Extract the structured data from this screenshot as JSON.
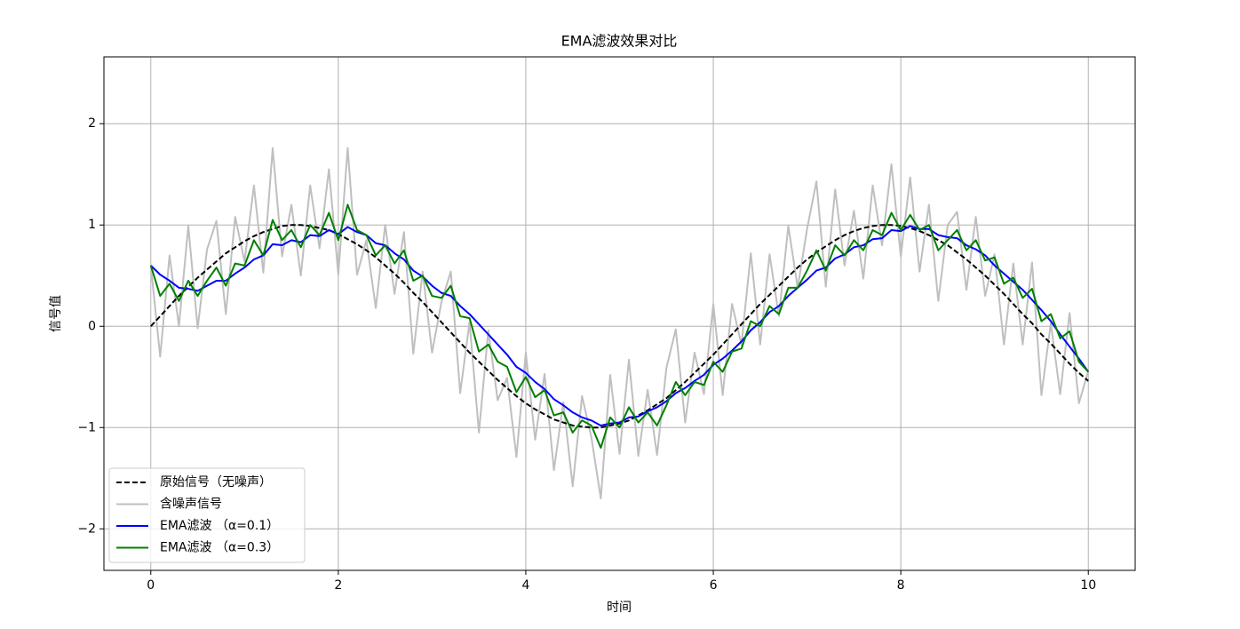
{
  "chart_data": {
    "type": "line",
    "title": "EMA滤波效果对比",
    "x_label": "时间",
    "y_label": "信号值",
    "x": [
      0,
      0.1,
      0.2,
      0.3,
      0.4,
      0.5,
      0.6,
      0.7,
      0.8,
      0.9,
      1,
      1.1,
      1.2,
      1.3,
      1.4,
      1.5,
      1.6,
      1.7,
      1.8,
      1.9,
      2,
      2.1,
      2.2,
      2.3,
      2.4,
      2.5,
      2.6,
      2.7,
      2.8,
      2.9,
      3,
      3.1,
      3.2,
      3.3,
      3.4,
      3.5,
      3.6,
      3.7,
      3.8,
      3.9,
      4,
      4.1,
      4.2,
      4.3,
      4.4,
      4.5,
      4.6,
      4.7,
      4.8,
      4.9,
      5,
      5.1,
      5.2,
      5.3,
      5.4,
      5.5,
      5.6,
      5.7,
      5.8,
      5.9,
      6,
      6.1,
      6.2,
      6.3,
      6.4,
      6.5,
      6.6,
      6.7,
      6.8,
      6.9,
      7,
      7.1,
      7.2,
      7.3,
      7.4,
      7.5,
      7.6,
      7.7,
      7.8,
      7.9,
      8,
      8.1,
      8.2,
      8.3,
      8.4,
      8.5,
      8.6,
      8.7,
      8.8,
      8.9,
      9,
      9.1,
      9.2,
      9.3,
      9.4,
      9.5,
      9.6,
      9.7,
      9.8,
      9.9,
      10
    ],
    "series": [
      {
        "name": "含噪声信号",
        "color": "#bfbfbf",
        "linestyle": "solid",
        "values": [
          0.6,
          -0.3,
          0.7,
          0.0,
          0.99,
          -0.02,
          0.76,
          1.04,
          0.12,
          1.08,
          0.64,
          1.39,
          0.53,
          1.76,
          0.69,
          1.2,
          0.5,
          1.39,
          0.77,
          1.55,
          0.51,
          1.76,
          0.51,
          0.85,
          0.18,
          1.0,
          0.32,
          0.93,
          -0.27,
          0.54,
          -0.26,
          0.24,
          0.54,
          -0.66,
          0.04,
          -1.05,
          -0.04,
          -0.73,
          -0.51,
          -1.29,
          -0.26,
          -1.12,
          -0.47,
          -1.42,
          -0.75,
          -1.58,
          -0.69,
          -1.1,
          -1.7,
          -0.48,
          -1.26,
          -0.33,
          -1.28,
          -0.63,
          -1.27,
          -0.41,
          -0.03,
          -0.95,
          -0.26,
          -0.67,
          0.22,
          -0.68,
          0.22,
          -0.18,
          0.72,
          -0.18,
          0.71,
          0.1,
          0.99,
          0.38,
          0.96,
          1.43,
          0.39,
          1.35,
          0.6,
          1.14,
          0.47,
          1.39,
          0.8,
          1.6,
          0.69,
          1.47,
          0.54,
          1.2,
          0.25,
          1.0,
          1.13,
          0.36,
          1.08,
          0.3,
          0.71,
          -0.18,
          0.62,
          -0.18,
          0.63,
          -0.68,
          0.03,
          -0.67,
          0.13,
          -0.76,
          -0.44
        ]
      },
      {
        "name": "原始信号（无噪声）",
        "color": "#000000",
        "linestyle": "dashed",
        "values": [
          0,
          0.1,
          0.2,
          0.3,
          0.39,
          0.48,
          0.56,
          0.64,
          0.72,
          0.78,
          0.84,
          0.89,
          0.93,
          0.96,
          0.99,
          1.0,
          1.0,
          0.99,
          0.97,
          0.95,
          0.91,
          0.86,
          0.81,
          0.75,
          0.68,
          0.6,
          0.52,
          0.43,
          0.33,
          0.24,
          0.14,
          0.04,
          -0.06,
          -0.16,
          -0.26,
          -0.35,
          -0.44,
          -0.53,
          -0.61,
          -0.69,
          -0.76,
          -0.82,
          -0.87,
          -0.92,
          -0.95,
          -0.98,
          -0.99,
          -1.0,
          -1.0,
          -0.98,
          -0.96,
          -0.93,
          -0.88,
          -0.83,
          -0.77,
          -0.71,
          -0.63,
          -0.55,
          -0.46,
          -0.37,
          -0.28,
          -0.18,
          -0.08,
          0.02,
          0.12,
          0.22,
          0.31,
          0.4,
          0.49,
          0.58,
          0.66,
          0.73,
          0.79,
          0.85,
          0.9,
          0.94,
          0.97,
          0.99,
          1.0,
          1.0,
          0.99,
          0.97,
          0.94,
          0.9,
          0.85,
          0.8,
          0.73,
          0.66,
          0.58,
          0.5,
          0.41,
          0.32,
          0.22,
          0.12,
          0.03,
          -0.08,
          -0.17,
          -0.27,
          -0.37,
          -0.46,
          -0.54
        ]
      },
      {
        "name": "EMA滤波 （α=0.1）",
        "color": "#0000ff",
        "linestyle": "solid",
        "values": [
          0.6,
          0.51,
          0.45,
          0.38,
          0.37,
          0.35,
          0.4,
          0.45,
          0.45,
          0.52,
          0.58,
          0.66,
          0.7,
          0.81,
          0.8,
          0.85,
          0.83,
          0.9,
          0.89,
          0.95,
          0.91,
          0.98,
          0.93,
          0.9,
          0.82,
          0.8,
          0.72,
          0.66,
          0.55,
          0.49,
          0.4,
          0.33,
          0.3,
          0.2,
          0.12,
          0.02,
          -0.08,
          -0.18,
          -0.28,
          -0.4,
          -0.46,
          -0.55,
          -0.62,
          -0.72,
          -0.78,
          -0.85,
          -0.9,
          -0.93,
          -0.98,
          -0.96,
          -0.95,
          -0.9,
          -0.89,
          -0.84,
          -0.8,
          -0.74,
          -0.66,
          -0.61,
          -0.54,
          -0.48,
          -0.38,
          -0.32,
          -0.24,
          -0.15,
          -0.04,
          0.04,
          0.14,
          0.2,
          0.3,
          0.38,
          0.46,
          0.55,
          0.58,
          0.67,
          0.71,
          0.78,
          0.8,
          0.86,
          0.87,
          0.95,
          0.94,
          0.99,
          0.96,
          0.96,
          0.9,
          0.88,
          0.87,
          0.8,
          0.76,
          0.7,
          0.6,
          0.52,
          0.44,
          0.36,
          0.26,
          0.16,
          0.05,
          -0.08,
          -0.2,
          -0.32,
          -0.45
        ]
      },
      {
        "name": "EMA滤波 （α=0.3）",
        "color": "#008000",
        "linestyle": "solid",
        "values": [
          0.6,
          0.3,
          0.42,
          0.25,
          0.45,
          0.3,
          0.45,
          0.58,
          0.4,
          0.62,
          0.6,
          0.85,
          0.7,
          1.05,
          0.85,
          0.95,
          0.78,
          1.0,
          0.9,
          1.12,
          0.85,
          1.2,
          0.95,
          0.9,
          0.7,
          0.8,
          0.62,
          0.75,
          0.45,
          0.5,
          0.3,
          0.28,
          0.4,
          0.1,
          0.08,
          -0.25,
          -0.18,
          -0.35,
          -0.4,
          -0.65,
          -0.5,
          -0.7,
          -0.63,
          -0.88,
          -0.85,
          -1.05,
          -0.93,
          -0.98,
          -1.2,
          -0.9,
          -1.0,
          -0.8,
          -0.95,
          -0.85,
          -0.98,
          -0.78,
          -0.55,
          -0.68,
          -0.55,
          -0.58,
          -0.35,
          -0.45,
          -0.25,
          -0.22,
          0.05,
          0.0,
          0.2,
          0.12,
          0.38,
          0.38,
          0.55,
          0.75,
          0.55,
          0.8,
          0.7,
          0.85,
          0.75,
          0.95,
          0.9,
          1.12,
          0.95,
          1.1,
          0.95,
          1.0,
          0.75,
          0.85,
          0.95,
          0.75,
          0.85,
          0.65,
          0.68,
          0.42,
          0.48,
          0.28,
          0.37,
          0.05,
          0.12,
          -0.12,
          -0.05,
          -0.35,
          -0.45
        ]
      }
    ],
    "xlim": [
      -0.5,
      10.5
    ],
    "ylim": [
      -2.41,
      2.66
    ],
    "xticks": [
      0,
      2,
      4,
      6,
      8,
      10
    ],
    "yticks": [
      {
        "value": -2,
        "label": "−2"
      },
      {
        "value": -1,
        "label": "−1"
      },
      0,
      1,
      2
    ],
    "grid": true,
    "legend": "lower left",
    "legend_order": [
      1,
      0,
      2,
      3
    ]
  }
}
